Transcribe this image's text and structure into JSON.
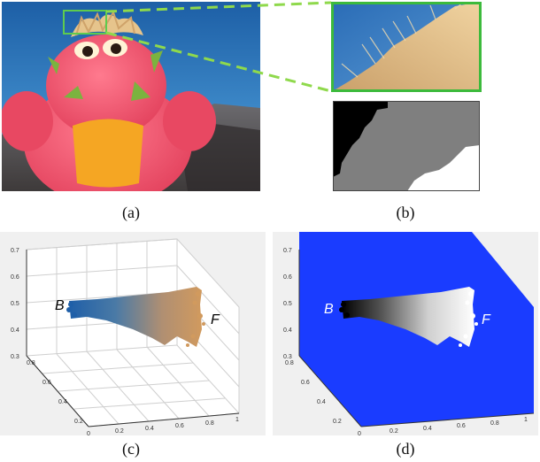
{
  "figure": {
    "captions": {
      "a": "(a)",
      "b": "(b)",
      "c": "(c)",
      "d": "(d)"
    },
    "panel_a": {
      "description_icon": "plush-dragon-photo",
      "sky_color": "#2f74b5",
      "toy_color": "#f05a72",
      "belly_color": "#f5a623",
      "highlight_box_color": "#5ecb4e"
    },
    "panel_b": {
      "zoom_border_color": "#3cba3c",
      "trimap_colors": {
        "background": "#000000",
        "unknown": "#7f7f7f",
        "foreground": "#ffffff"
      }
    },
    "panel_c": {
      "label_B": "B",
      "label_F": "F",
      "z_ticks": [
        "0.7",
        "0.6",
        "0.5",
        "0.4",
        "0.3"
      ],
      "y_ticks": [
        "0.8",
        "0.6",
        "0.4",
        "0.2"
      ],
      "x_ticks": [
        "0",
        "0.2",
        "0.4",
        "0.6",
        "0.8",
        "1"
      ],
      "cloud_start_color": "#1f5fa8",
      "cloud_end_color": "#d19a5e"
    },
    "panel_d": {
      "label_B": "B",
      "label_F": "F",
      "z_ticks": [
        "0.7",
        "0.6",
        "0.5",
        "0.4",
        "0.3"
      ],
      "y_ticks": [
        "0.8",
        "0.6",
        "0.4",
        "0.2"
      ],
      "x_ticks": [
        "0",
        "0.2",
        "0.4",
        "0.6",
        "0.8",
        "1"
      ],
      "background_color": "#1a3cff"
    }
  }
}
